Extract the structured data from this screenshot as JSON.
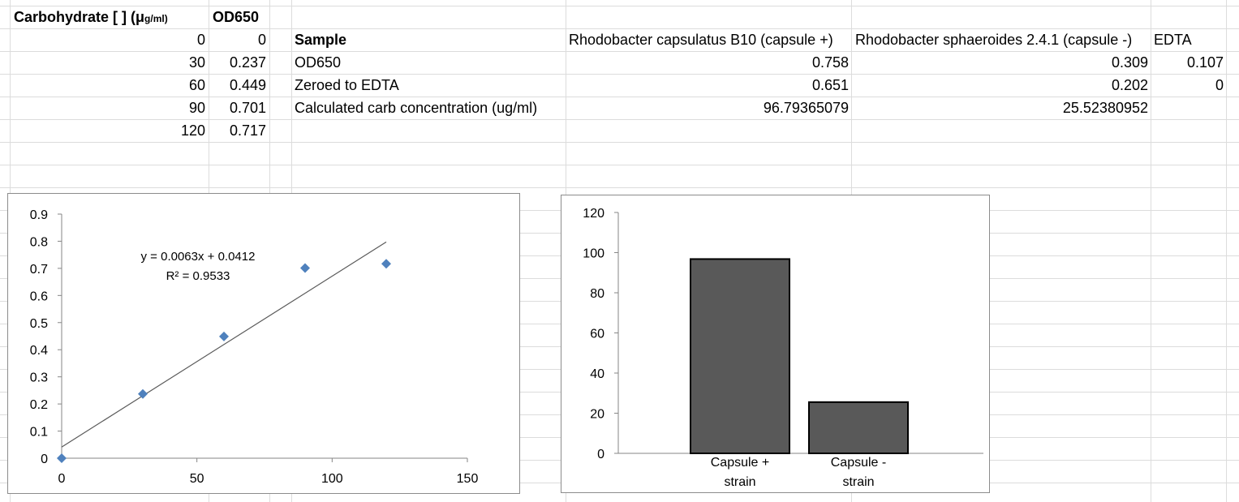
{
  "sheet": {
    "std_header_carb": "Carbohydrate [ ] (μ",
    "std_header_carb_unit": "g/ml)",
    "std_header_od": "OD650",
    "std_rows": [
      {
        "conc": "0",
        "od": "0"
      },
      {
        "conc": "30",
        "od": "0.237"
      },
      {
        "conc": "60",
        "od": "0.449"
      },
      {
        "conc": "90",
        "od": "0.701"
      },
      {
        "conc": "120",
        "od": "0.717"
      }
    ],
    "sample_header": {
      "label": "Sample",
      "col1": "Rhodobacter capsulatus B10 (capsule +)",
      "col2": "Rhodobacter sphaeroides 2.4.1 (capsule -)",
      "col3": "EDTA"
    },
    "sample_rows": [
      {
        "label": "OD650",
        "c1": "0.758",
        "c2": "0.309",
        "c3": "0.107"
      },
      {
        "label": "Zeroed to EDTA",
        "c1": "0.651",
        "c2": "0.202",
        "c3": "0"
      },
      {
        "label": "Calculated carb concentration (ug/ml)",
        "c1": "96.79365079",
        "c2": "25.52380952",
        "c3": ""
      }
    ]
  },
  "chart_data": [
    {
      "type": "scatter",
      "points": [
        {
          "x": 0,
          "y": 0
        },
        {
          "x": 30,
          "y": 0.237
        },
        {
          "x": 60,
          "y": 0.449
        },
        {
          "x": 90,
          "y": 0.701
        },
        {
          "x": 120,
          "y": 0.717
        }
      ],
      "trendline": {
        "slope": 0.0063,
        "intercept": 0.0412,
        "x_range": [
          0,
          120
        ]
      },
      "equation": "y = 0.0063x + 0.0412",
      "r_squared": "R² = 0.9533",
      "xlim": [
        0,
        150
      ],
      "ylim": [
        0,
        0.9
      ],
      "xticks": [
        0,
        50,
        100,
        150
      ],
      "xtick_labels": [
        "0",
        "50",
        "100",
        "150"
      ],
      "yticks": [
        0,
        0.1,
        0.2,
        0.3,
        0.4,
        0.5,
        0.6,
        0.7,
        0.8,
        0.9
      ],
      "ytick_labels": [
        "0",
        "0.1",
        "0.2",
        "0.3",
        "0.4",
        "0.5",
        "0.6",
        "0.7",
        "0.8",
        "0.9"
      ],
      "grid": false,
      "marker_color": "#4f81bd",
      "line_color": "#595959"
    },
    {
      "type": "bar",
      "categories": [
        [
          "Capsule +",
          "strain"
        ],
        [
          "Capsule -",
          "strain"
        ]
      ],
      "values": [
        96.79365079,
        25.52380952
      ],
      "ylim": [
        0,
        120
      ],
      "yticks": [
        0,
        20,
        40,
        60,
        80,
        100,
        120
      ],
      "ytick_labels": [
        "0",
        "20",
        "40",
        "60",
        "80",
        "100",
        "120"
      ],
      "grid": false,
      "bar_color": "#595959",
      "bar_edge_color": "#000000"
    }
  ]
}
